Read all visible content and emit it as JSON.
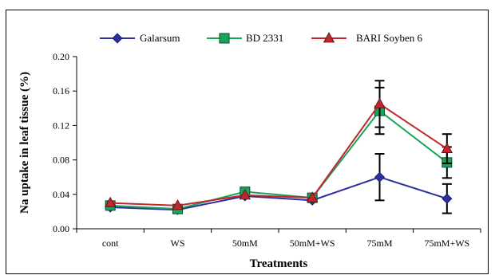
{
  "chart_data": {
    "type": "line",
    "categories": [
      "cont",
      "WS",
      "50mM",
      "50mM+WS",
      "75mM",
      "75mM+WS"
    ],
    "xlabel": "Treatments",
    "ylabel": "Na uptake in leaf tissue (%)",
    "ylim": [
      0,
      0.2
    ],
    "yticks": [
      "0.00",
      "0.04",
      "0.08",
      "0.12",
      "0.16",
      "0.20"
    ],
    "grid": false,
    "legend": "top",
    "series": [
      {
        "name": "Galarsum",
        "color": "#2e2e9e",
        "marker": "diamond",
        "values": [
          0.025,
          0.022,
          0.038,
          0.033,
          0.06,
          0.035
        ],
        "errors": [
          0.0,
          0.0,
          0.0,
          0.0,
          0.027,
          0.017
        ]
      },
      {
        "name": "BD 2331",
        "color": "#1aa35a",
        "marker": "square",
        "values": [
          0.027,
          0.023,
          0.043,
          0.036,
          0.137,
          0.077
        ],
        "errors": [
          0.0,
          0.0,
          0.0,
          0.0,
          0.027,
          0.018
        ]
      },
      {
        "name": "BARI Soyben 6",
        "color": "#c0272d",
        "marker": "triangle",
        "values": [
          0.03,
          0.027,
          0.039,
          0.036,
          0.145,
          0.093
        ],
        "errors": [
          0.0,
          0.0,
          0.0,
          0.0,
          0.027,
          0.017
        ]
      }
    ]
  }
}
